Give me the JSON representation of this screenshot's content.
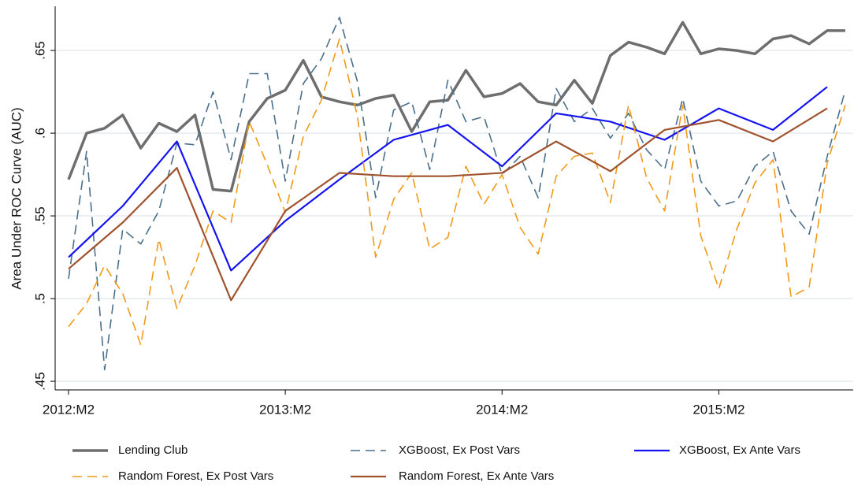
{
  "chart_data": {
    "type": "line",
    "ylabel": "Area Under ROC Curve (AUC)",
    "x": [
      0,
      1,
      2,
      3,
      4,
      5,
      6,
      7,
      8,
      9,
      10,
      11,
      12,
      13,
      14,
      15,
      16,
      17,
      18,
      19,
      20,
      21,
      22,
      23,
      24,
      25,
      26,
      27,
      28,
      29,
      30,
      31,
      32,
      33,
      34,
      35,
      36,
      37,
      38,
      39,
      40,
      41,
      42,
      43
    ],
    "xlim": [
      -0.74,
      43.44
    ],
    "xticks": [
      {
        "value": 0,
        "label": "2012:M2"
      },
      {
        "value": 12,
        "label": "2013:M2"
      },
      {
        "value": 24,
        "label": "2014:M2"
      },
      {
        "value": 36,
        "label": "2015:M2"
      }
    ],
    "ylim": [
      0.4448,
      0.6767
    ],
    "yticks": [
      {
        "value": 0.45,
        "label": ".45"
      },
      {
        "value": 0.5,
        "label": ".5"
      },
      {
        "value": 0.55,
        "label": ".55"
      },
      {
        "value": 0.6,
        "label": ".6"
      },
      {
        "value": 0.65,
        "label": ".65"
      }
    ],
    "grid": true,
    "series": [
      {
        "name": "Lending Club",
        "color": "#6e6e6e",
        "style": "solid",
        "line_width": 3.5,
        "values": [
          0.572,
          0.6,
          0.603,
          0.611,
          0.591,
          0.606,
          0.601,
          0.611,
          0.566,
          0.565,
          0.607,
          0.621,
          0.626,
          0.644,
          0.622,
          0.619,
          0.617,
          0.621,
          0.623,
          0.601,
          0.619,
          0.62,
          0.638,
          0.622,
          0.624,
          0.63,
          0.619,
          0.617,
          0.632,
          0.618,
          0.647,
          0.655,
          0.652,
          0.648,
          0.667,
          0.648,
          0.651,
          0.65,
          0.648,
          0.657,
          0.659,
          0.654,
          0.662,
          0.662
        ]
      },
      {
        "name": "XGBoost, Ex Post Vars",
        "color": "#4a6f8a",
        "style": "dashed",
        "line_width": 1.6,
        "values": [
          0.512,
          0.589,
          0.457,
          0.542,
          0.533,
          0.553,
          0.594,
          0.593,
          0.625,
          0.584,
          0.636,
          0.636,
          0.571,
          0.63,
          0.645,
          0.67,
          0.631,
          0.561,
          0.614,
          0.619,
          0.578,
          0.632,
          0.607,
          0.61,
          0.575,
          0.586,
          0.561,
          0.627,
          0.607,
          0.615,
          0.597,
          0.612,
          0.59,
          0.578,
          0.621,
          0.571,
          0.556,
          0.559,
          0.58,
          0.589,
          0.553,
          0.539,
          0.586,
          0.626
        ]
      },
      {
        "name": "XGBoost, Ex Ante Vars",
        "color": "#1414f0",
        "style": "solid",
        "line_width": 2.2,
        "x": [
          0,
          3,
          6,
          9,
          12,
          15,
          18,
          21,
          24,
          27,
          30,
          33,
          36,
          39,
          42
        ],
        "values": [
          0.525,
          0.556,
          0.595,
          0.517,
          0.547,
          0.572,
          0.596,
          0.605,
          0.58,
          0.612,
          0.607,
          0.596,
          0.615,
          0.602,
          0.628
        ]
      },
      {
        "name": "Random Forest, Ex Post Vars",
        "color": "#f09a1a",
        "style": "dashed",
        "line_width": 1.6,
        "values": [
          0.483,
          0.497,
          0.52,
          0.503,
          0.472,
          0.536,
          0.494,
          0.52,
          0.553,
          0.546,
          0.607,
          0.581,
          0.552,
          0.598,
          0.62,
          0.657,
          0.61,
          0.525,
          0.56,
          0.576,
          0.53,
          0.537,
          0.58,
          0.557,
          0.575,
          0.543,
          0.527,
          0.574,
          0.586,
          0.588,
          0.558,
          0.617,
          0.573,
          0.553,
          0.617,
          0.538,
          0.506,
          0.542,
          0.57,
          0.584,
          0.501,
          0.507,
          0.582,
          0.617
        ]
      },
      {
        "name": "Random Forest, Ex Ante Vars",
        "color": "#a0522d",
        "style": "solid",
        "line_width": 2.2,
        "x": [
          0,
          3,
          6,
          9,
          12,
          15,
          18,
          21,
          24,
          27,
          30,
          33,
          36,
          39,
          42
        ],
        "values": [
          0.518,
          0.546,
          0.579,
          0.499,
          0.553,
          0.576,
          0.574,
          0.574,
          0.576,
          0.595,
          0.577,
          0.602,
          0.608,
          0.595,
          0.615
        ]
      }
    ]
  }
}
